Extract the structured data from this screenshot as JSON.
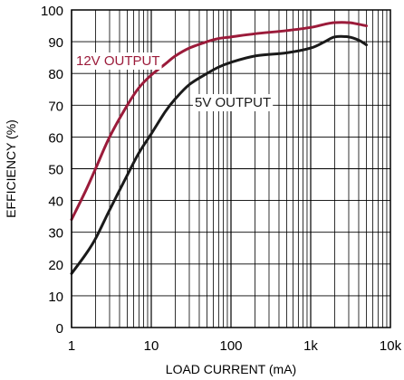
{
  "chart_data": {
    "type": "line",
    "title": "",
    "xlabel": "LOAD CURRENT (mA)",
    "ylabel": "EFFICIENCY (%)",
    "x_scale": "log",
    "xlim": [
      1,
      10000
    ],
    "ylim": [
      0,
      100
    ],
    "x_ticks": [
      1,
      10,
      100,
      1000,
      10000
    ],
    "x_tick_labels": [
      "1",
      "10",
      "100",
      "1k",
      "10k"
    ],
    "y_ticks": [
      0,
      10,
      20,
      30,
      40,
      50,
      60,
      70,
      80,
      90,
      100
    ],
    "y_tick_labels": [
      "0",
      "10",
      "20",
      "30",
      "40",
      "50",
      "60",
      "70",
      "80",
      "90",
      "100"
    ],
    "grid": true,
    "legend": "none",
    "series": [
      {
        "name": "12V OUTPUT",
        "color": "#9b1b3a",
        "points": [
          [
            1,
            34
          ],
          [
            1.5,
            43
          ],
          [
            2,
            50
          ],
          [
            3,
            60
          ],
          [
            5,
            70
          ],
          [
            7,
            75.5
          ],
          [
            10,
            79.5
          ],
          [
            15,
            83
          ],
          [
            20,
            85.5
          ],
          [
            30,
            88
          ],
          [
            50,
            90
          ],
          [
            70,
            91
          ],
          [
            100,
            91.5
          ],
          [
            200,
            92.5
          ],
          [
            500,
            93.5
          ],
          [
            1000,
            94.5
          ],
          [
            1500,
            95.5
          ],
          [
            2000,
            96
          ],
          [
            3000,
            96
          ],
          [
            4000,
            95.5
          ],
          [
            5000,
            95
          ]
        ]
      },
      {
        "name": "5V OUTPUT",
        "color": "#1a1a1a",
        "points": [
          [
            1,
            17
          ],
          [
            1.5,
            23
          ],
          [
            2,
            28
          ],
          [
            3,
            37
          ],
          [
            5,
            48
          ],
          [
            7,
            55
          ],
          [
            10,
            61
          ],
          [
            15,
            68
          ],
          [
            20,
            72
          ],
          [
            30,
            76.5
          ],
          [
            50,
            80
          ],
          [
            70,
            82
          ],
          [
            100,
            83.5
          ],
          [
            200,
            85.5
          ],
          [
            500,
            86.5
          ],
          [
            1000,
            88
          ],
          [
            1500,
            90
          ],
          [
            2000,
            91.5
          ],
          [
            3000,
            91.5
          ],
          [
            4000,
            90.5
          ],
          [
            5000,
            89
          ]
        ]
      }
    ]
  }
}
